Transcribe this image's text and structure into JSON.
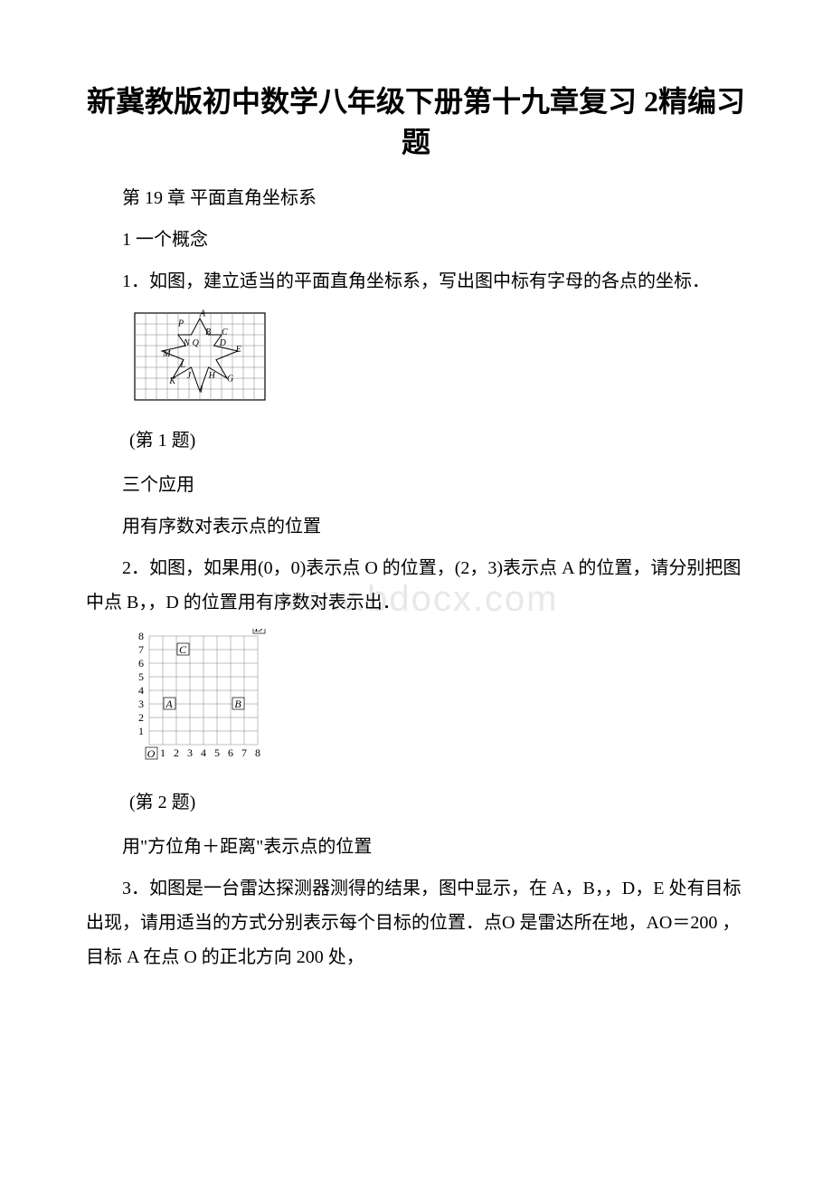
{
  "title": "新冀教版初中数学八年级下册第十九章复习 2精编习题",
  "watermark": "www.bdocx.com",
  "sections": {
    "chapter": "第 19 章  平面直角坐标系",
    "concept_head": "1 一个概念",
    "q1": "1．如图，建立适当的平面直角坐标系，写出图中标有字母的各点的坐标．",
    "q1_caption": "(第 1 题)",
    "three_apps": "三个应用",
    "app1_head": "用有序数对表示点的位置",
    "q2": "2．如图，如果用(0，0)表示点 O 的位置，(2，3)表示点 A 的位置，请分别把图中点 B，，D 的位置用有序数对表示出．",
    "q2_caption": "(第 2 题)",
    "app2_head": "用\"方位角＋距离\"表示点的位置",
    "q3": "3．如图是一台雷达探测器测得的结果，图中显示，在 A，B，，D，E 处有目标出现，请用适当的方式分别表示每个目标的位置．点O 是雷达所在地，AO＝200 ，目标 A 在点 O 的正北方向 200 处，"
  },
  "figure1": {
    "grid_cells_x": 12,
    "grid_cells_y": 8,
    "cell_size": 12,
    "grid_color": "#808080",
    "border_color": "#000000",
    "labels": [
      "A",
      "B",
      "C",
      "D",
      "E",
      "G",
      "H",
      "I",
      "J",
      "K",
      "L",
      "M",
      "N",
      "P",
      "Q"
    ],
    "star_points": [
      [
        6,
        0.5
      ],
      [
        6.8,
        2
      ],
      [
        8,
        2
      ],
      [
        7.3,
        3
      ],
      [
        9.5,
        3.5
      ],
      [
        7.5,
        4.3
      ],
      [
        8.5,
        6
      ],
      [
        6.8,
        5
      ],
      [
        6,
        7.2
      ],
      [
        5.2,
        5
      ],
      [
        3.5,
        6
      ],
      [
        4.5,
        4.3
      ],
      [
        2.5,
        3.5
      ],
      [
        4.7,
        3
      ],
      [
        4,
        2
      ],
      [
        5.2,
        2
      ]
    ],
    "label_positions": {
      "A": [
        6,
        0.3
      ],
      "P": [
        4,
        1.2
      ],
      "B": [
        6.5,
        2
      ],
      "C": [
        8,
        2
      ],
      "D": [
        7.8,
        3
      ],
      "E": [
        9.3,
        3.6
      ],
      "M": [
        2.6,
        4
      ],
      "N": [
        4.5,
        3
      ],
      "Q": [
        5.3,
        3
      ],
      "L": [
        4.2,
        5
      ],
      "J": [
        4.8,
        6
      ],
      "K": [
        3.2,
        6.5
      ],
      "I": [
        6,
        7.3
      ],
      "H": [
        6.8,
        6
      ],
      "G": [
        8.5,
        6.3
      ]
    }
  },
  "figure2": {
    "grid_cells_x": 8,
    "grid_cells_y": 8,
    "cell_size": 15,
    "grid_color": "#808080",
    "axis_color": "#000000",
    "x_ticks": [
      0,
      1,
      2,
      3,
      4,
      5,
      6,
      7,
      8
    ],
    "y_ticks": [
      1,
      2,
      3,
      4,
      5,
      6,
      7,
      8
    ],
    "points": {
      "O": {
        "x": 0,
        "y": 0,
        "label_dx": -2,
        "label_dy": 14
      },
      "A": {
        "x": 2,
        "y": 3,
        "label_dx": -12,
        "label_dy": 4
      },
      "B": {
        "x": 6,
        "y": 3,
        "label_dx": 4,
        "label_dy": 4
      },
      "C": {
        "x": 3,
        "y": 7,
        "label_dx": -12,
        "label_dy": 4
      },
      "D": {
        "x": 8,
        "y": 8,
        "label_dx": -3,
        "label_dy": -5
      }
    },
    "font_size": 12
  }
}
